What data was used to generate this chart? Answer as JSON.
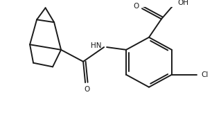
{
  "background_color": "#ffffff",
  "line_color": "#1a1a1a",
  "line_width": 1.4,
  "text_color": "#1a1a1a",
  "figsize": [
    3.06,
    1.89
  ],
  "dpi": 100,
  "xlim": [
    0,
    306
  ],
  "ylim": [
    0,
    189
  ]
}
